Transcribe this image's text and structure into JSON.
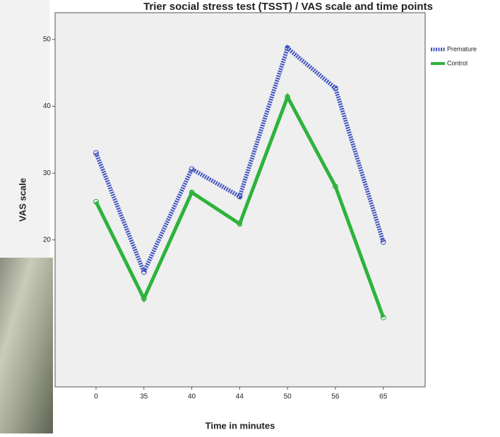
{
  "chart_data": {
    "type": "line",
    "title": "Trier social stress test (TSST) / VAS scale and time points",
    "x_label": "Time in minutes",
    "y_label": "VAS scale",
    "categories": [
      "0",
      "35",
      "40",
      "44",
      "50",
      "56",
      "65"
    ],
    "series": [
      {
        "name": "Premature",
        "color": "#3f51c0",
        "dashed": true,
        "values": [
          33.0,
          15.2,
          30.6,
          26.5,
          48.7,
          42.7,
          19.7
        ]
      },
      {
        "name": "Control",
        "color": "#2eb33c",
        "dashed": false,
        "values": [
          25.7,
          11.2,
          27.1,
          22.4,
          41.4,
          28.0,
          8.4
        ]
      }
    ],
    "ylim": [
      -2,
      54
    ],
    "yticks": [
      20,
      30,
      40,
      50
    ],
    "grid": false,
    "legend": "right"
  }
}
